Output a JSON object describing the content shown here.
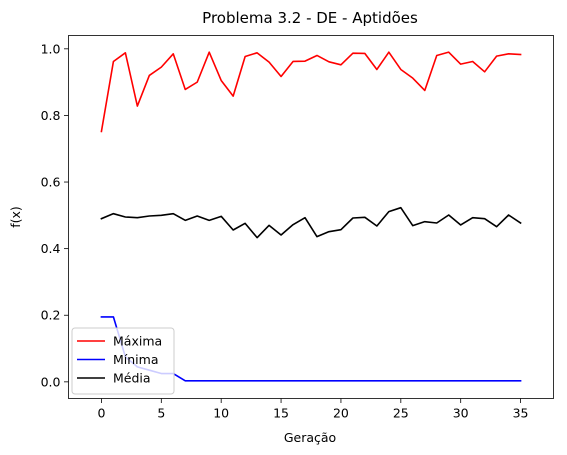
{
  "chart_data": {
    "type": "line",
    "title": "Problema 3.2 - DE - Aptidões",
    "xlabel": "Geração",
    "ylabel": "f(x)",
    "xlim": [
      -2.75,
      37.75
    ],
    "ylim": [
      -0.05,
      1.04
    ],
    "xticks": [
      0,
      5,
      10,
      15,
      20,
      25,
      30,
      35
    ],
    "yticks": [
      0.0,
      0.2,
      0.4,
      0.6,
      0.8,
      1.0
    ],
    "ytick_labels": [
      "0.0",
      "0.2",
      "0.4",
      "0.6",
      "0.8",
      "1.0"
    ],
    "legend_position": "lower-left",
    "grid": false,
    "x": [
      0,
      1,
      2,
      3,
      4,
      5,
      6,
      7,
      8,
      9,
      10,
      11,
      12,
      13,
      14,
      15,
      16,
      17,
      18,
      19,
      20,
      21,
      22,
      23,
      24,
      25,
      26,
      27,
      28,
      29,
      30,
      31,
      32,
      33,
      34,
      35
    ],
    "series": [
      {
        "name": "Máxima",
        "color": "#ff0000",
        "values": [
          0.752,
          0.962,
          0.988,
          0.828,
          0.92,
          0.945,
          0.985,
          0.878,
          0.9,
          0.99,
          0.905,
          0.858,
          0.977,
          0.988,
          0.96,
          0.917,
          0.962,
          0.963,
          0.98,
          0.961,
          0.952,
          0.987,
          0.986,
          0.938,
          0.99,
          0.938,
          0.912,
          0.875,
          0.98,
          0.99,
          0.954,
          0.962,
          0.931,
          0.978,
          0.985,
          0.983
        ]
      },
      {
        "name": "Mínima",
        "color": "#0000ff",
        "values": [
          0.195,
          0.195,
          0.075,
          0.045,
          0.035,
          0.025,
          0.025,
          0.003,
          0.003,
          0.003,
          0.003,
          0.003,
          0.003,
          0.003,
          0.003,
          0.003,
          0.003,
          0.003,
          0.003,
          0.003,
          0.003,
          0.003,
          0.003,
          0.003,
          0.003,
          0.003,
          0.003,
          0.003,
          0.003,
          0.003,
          0.003,
          0.003,
          0.003,
          0.003,
          0.003,
          0.003
        ]
      },
      {
        "name": "Média",
        "color": "#000000",
        "values": [
          0.49,
          0.505,
          0.495,
          0.493,
          0.498,
          0.5,
          0.505,
          0.485,
          0.498,
          0.485,
          0.497,
          0.456,
          0.476,
          0.433,
          0.47,
          0.441,
          0.472,
          0.493,
          0.436,
          0.451,
          0.457,
          0.492,
          0.494,
          0.468,
          0.511,
          0.523,
          0.469,
          0.481,
          0.477,
          0.501,
          0.471,
          0.493,
          0.49,
          0.466,
          0.501,
          0.477
        ]
      }
    ]
  }
}
